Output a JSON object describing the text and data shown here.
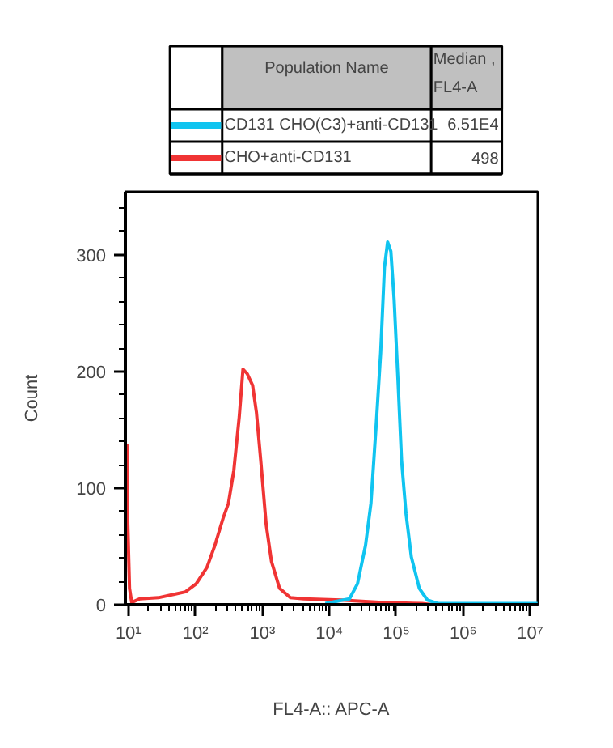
{
  "chart_data": {
    "type": "line",
    "xlabel": "FL4-A:: APC-A",
    "ylabel": "Count",
    "log": "x",
    "xlim": [
      9,
      13000000
    ],
    "xticks": [
      {
        "value": 10,
        "label": "10¹"
      },
      {
        "value": 100,
        "label": "10²"
      },
      {
        "value": 1000,
        "label": "10³"
      },
      {
        "value": 10000,
        "label": "10⁴"
      },
      {
        "value": 100000,
        "label": "10⁵"
      },
      {
        "value": 1000000,
        "label": "10⁶"
      },
      {
        "value": 10000000,
        "label": "10⁷"
      }
    ],
    "ylim": [
      0,
      354
    ],
    "yticks": [
      0,
      100,
      200,
      300
    ],
    "grid": false,
    "legend": "top",
    "legend_title": "Population Name",
    "annotations": [
      "Median ,\nFL4-A",
      "6.51E4",
      "498"
    ],
    "series": [
      {
        "name": "CD131 CHO(C3)+anti-CD131",
        "color": "#10c4f0",
        "x": [
          8710,
          20000,
          26400,
          34800,
          41900,
          50400,
          58500,
          66600,
          74300,
          83100,
          92900,
          106000,
          120000,
          140000,
          168000,
          221000,
          292000,
          424000,
          12900000
        ],
        "values": [
          1,
          5,
          18,
          51,
          87,
          156,
          216,
          289,
          311,
          303,
          262,
          193,
          124,
          78,
          41,
          14,
          4,
          1,
          1
        ]
      },
      {
        "name": "CHO+anti-CD131",
        "color": "#f03434",
        "x": [
          9.5,
          9.8,
          10.4,
          11.2,
          14.7,
          28,
          49,
          71,
          103,
          149,
          196,
          259,
          312,
          375,
          452,
          514,
          596,
          716,
          816,
          946,
          1140,
          1370,
          1810,
          2620,
          4150,
          15200,
          55300,
          243000,
          352000
        ],
        "values": [
          138,
          69,
          14,
          2,
          5,
          6,
          9,
          11,
          18,
          32,
          51,
          74,
          87,
          115,
          161,
          202,
          198,
          188,
          165,
          124,
          69,
          37,
          14,
          6,
          5,
          4,
          2,
          1,
          0
        ]
      }
    ]
  }
}
